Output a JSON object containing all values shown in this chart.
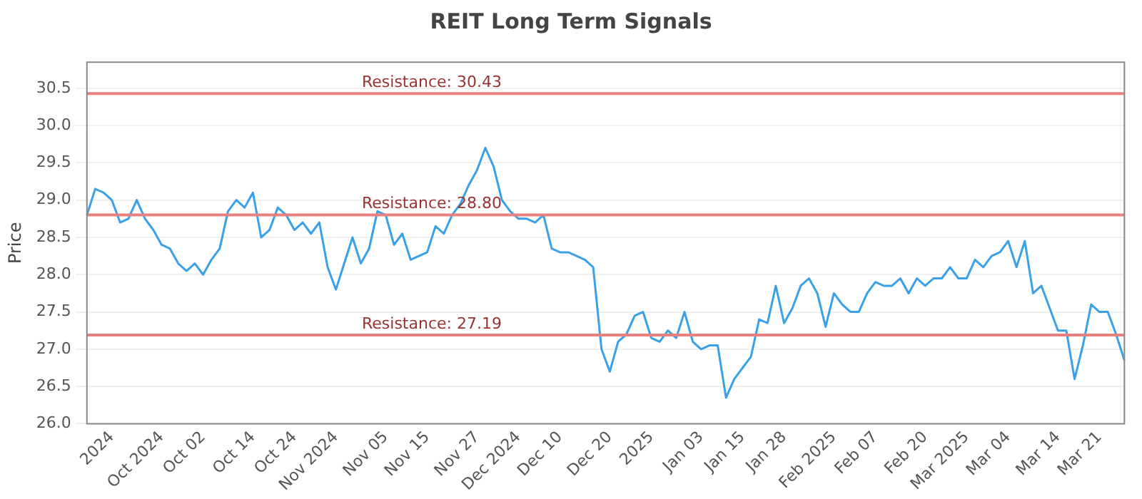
{
  "chart_data": {
    "type": "line",
    "title": "REIT Long Term Signals",
    "ylabel": "Price",
    "categories": [
      null,
      null,
      null,
      "2024",
      null,
      null,
      null,
      null,
      null,
      "Oct 2024",
      null,
      null,
      null,
      null,
      "Oct 02",
      null,
      null,
      null,
      null,
      null,
      "Oct 14",
      null,
      null,
      null,
      null,
      "Oct 24",
      null,
      null,
      null,
      null,
      "Nov 2024",
      null,
      null,
      null,
      null,
      null,
      "Nov 05",
      null,
      null,
      null,
      null,
      "Nov 15",
      null,
      null,
      null,
      null,
      null,
      "Nov 27",
      null,
      null,
      null,
      null,
      "Dec 2024",
      null,
      null,
      null,
      null,
      "Dec 10",
      null,
      null,
      null,
      null,
      null,
      "Dec 20",
      null,
      null,
      null,
      null,
      "2025",
      null,
      null,
      null,
      null,
      null,
      "Jan 03",
      null,
      null,
      null,
      null,
      "Jan 15",
      null,
      null,
      null,
      null,
      "Jan 28",
      null,
      null,
      null,
      null,
      null,
      "Feb 2025",
      null,
      null,
      null,
      null,
      "Feb 07",
      null,
      null,
      null,
      null,
      null,
      "Feb 20",
      null,
      null,
      null,
      null,
      "Mar 2025",
      null,
      null,
      null,
      null,
      "Mar 04",
      null,
      null,
      null,
      null,
      null,
      "Mar 14",
      null,
      null,
      null,
      null,
      "Mar 21",
      null,
      null,
      null
    ],
    "series": [
      {
        "color": "#3aa0e8",
        "values": [
          28.8,
          29.15,
          29.1,
          29.0,
          28.7,
          28.75,
          29.0,
          28.75,
          28.6,
          28.4,
          28.35,
          28.15,
          28.05,
          28.15,
          28.0,
          28.2,
          28.35,
          28.85,
          29.0,
          28.9,
          29.1,
          28.5,
          28.6,
          28.9,
          28.8,
          28.6,
          28.7,
          28.55,
          28.7,
          28.1,
          27.8,
          28.15,
          28.5,
          28.15,
          28.35,
          28.85,
          28.8,
          28.4,
          28.55,
          28.2,
          28.25,
          28.3,
          28.65,
          28.55,
          28.8,
          28.95,
          29.2,
          29.4,
          29.7,
          29.45,
          29.0,
          28.85,
          28.75,
          28.75,
          28.7,
          28.8,
          28.35,
          28.3,
          28.3,
          28.25,
          28.2,
          28.1,
          27.0,
          26.7,
          27.1,
          27.2,
          27.45,
          27.5,
          27.15,
          27.1,
          27.25,
          27.15,
          27.5,
          27.1,
          27.0,
          27.05,
          27.05,
          26.35,
          26.6,
          26.75,
          26.9,
          27.4,
          27.35,
          27.85,
          27.35,
          27.55,
          27.85,
          27.95,
          27.75,
          27.3,
          27.75,
          27.6,
          27.5,
          27.5,
          27.75,
          27.9,
          27.85,
          27.85,
          27.95,
          27.75,
          27.95,
          27.85,
          27.95,
          27.95,
          28.1,
          27.95,
          27.95,
          28.2,
          28.1,
          28.25,
          28.3,
          28.45,
          28.1,
          28.45,
          27.75,
          27.85,
          27.55,
          27.25,
          27.25,
          26.6,
          27.05,
          27.6,
          27.5,
          27.5,
          27.2,
          26.85
        ]
      }
    ],
    "ylim": [
      26.0,
      30.85
    ],
    "yticks": [
      {
        "value": 26.0,
        "label": "26.0"
      },
      {
        "value": 26.5,
        "label": "26.5"
      },
      {
        "value": 27.0,
        "label": "27.0"
      },
      {
        "value": 27.5,
        "label": "27.5"
      },
      {
        "value": 28.0,
        "label": "28.0"
      },
      {
        "value": 28.5,
        "label": "28.5"
      },
      {
        "value": 29.0,
        "label": "29.0"
      },
      {
        "value": 29.5,
        "label": "29.5"
      },
      {
        "value": 30.0,
        "label": "30.0"
      },
      {
        "value": 30.5,
        "label": "30.5"
      }
    ],
    "ref_lines": [
      {
        "axis": "y",
        "value": 30.43,
        "label": "Resistance: 30.43",
        "color": "#e88080"
      },
      {
        "axis": "y",
        "value": 28.8,
        "label": "Resistance: 28.80",
        "color": "#e88080"
      },
      {
        "axis": "y",
        "value": 27.19,
        "label": "Resistance: 27.19",
        "color": "#e88080"
      }
    ],
    "grid": "y",
    "legend": false,
    "marker": "none",
    "line_style": "solid"
  }
}
